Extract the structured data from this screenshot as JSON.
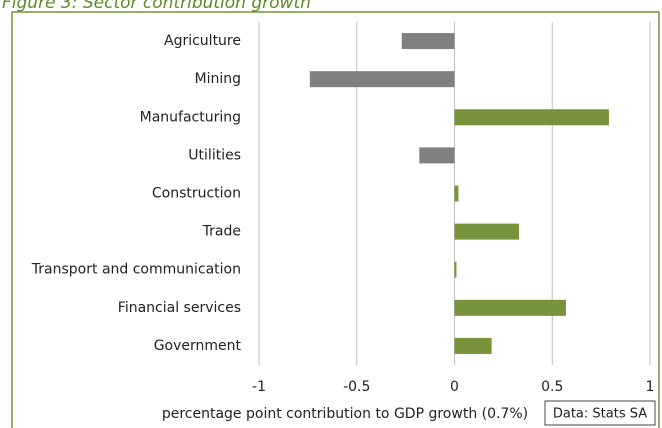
{
  "chart_data": {
    "type": "barh",
    "title": "Figure 3: Sector contribution growth",
    "categories": [
      "Agriculture",
      "Mining",
      "Manufacturing",
      "Utilities",
      "Construction",
      "Trade",
      "Transport and communication",
      "Financial services",
      "Government"
    ],
    "values": [
      -0.27,
      -0.74,
      0.79,
      -0.18,
      0.02,
      0.33,
      0.01,
      0.57,
      0.19
    ],
    "positive_color": "#77933c",
    "negative_color": "#808080",
    "xlim": [
      -1,
      1
    ],
    "xticks": [
      -1,
      -0.5,
      0,
      0.5,
      1
    ],
    "grid": true,
    "xlabel": "percentage point contribution to GDP growth (0.7%)",
    "annotation": "Data: Stats SA"
  }
}
